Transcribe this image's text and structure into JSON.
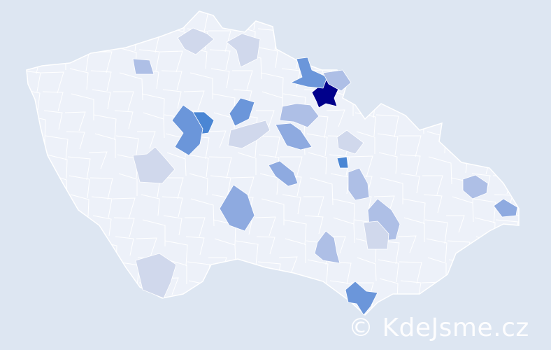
{
  "map": {
    "country_fill": "#edf1f9",
    "border_color": "#ffffff",
    "background": "#dde6f2",
    "scale_colors": [
      "#d0d8ec",
      "#aebfe6",
      "#8eaae0",
      "#6b96da",
      "#4a86d4",
      "#00008b"
    ]
  },
  "watermark": {
    "text": "© KdeJsme.cz"
  }
}
